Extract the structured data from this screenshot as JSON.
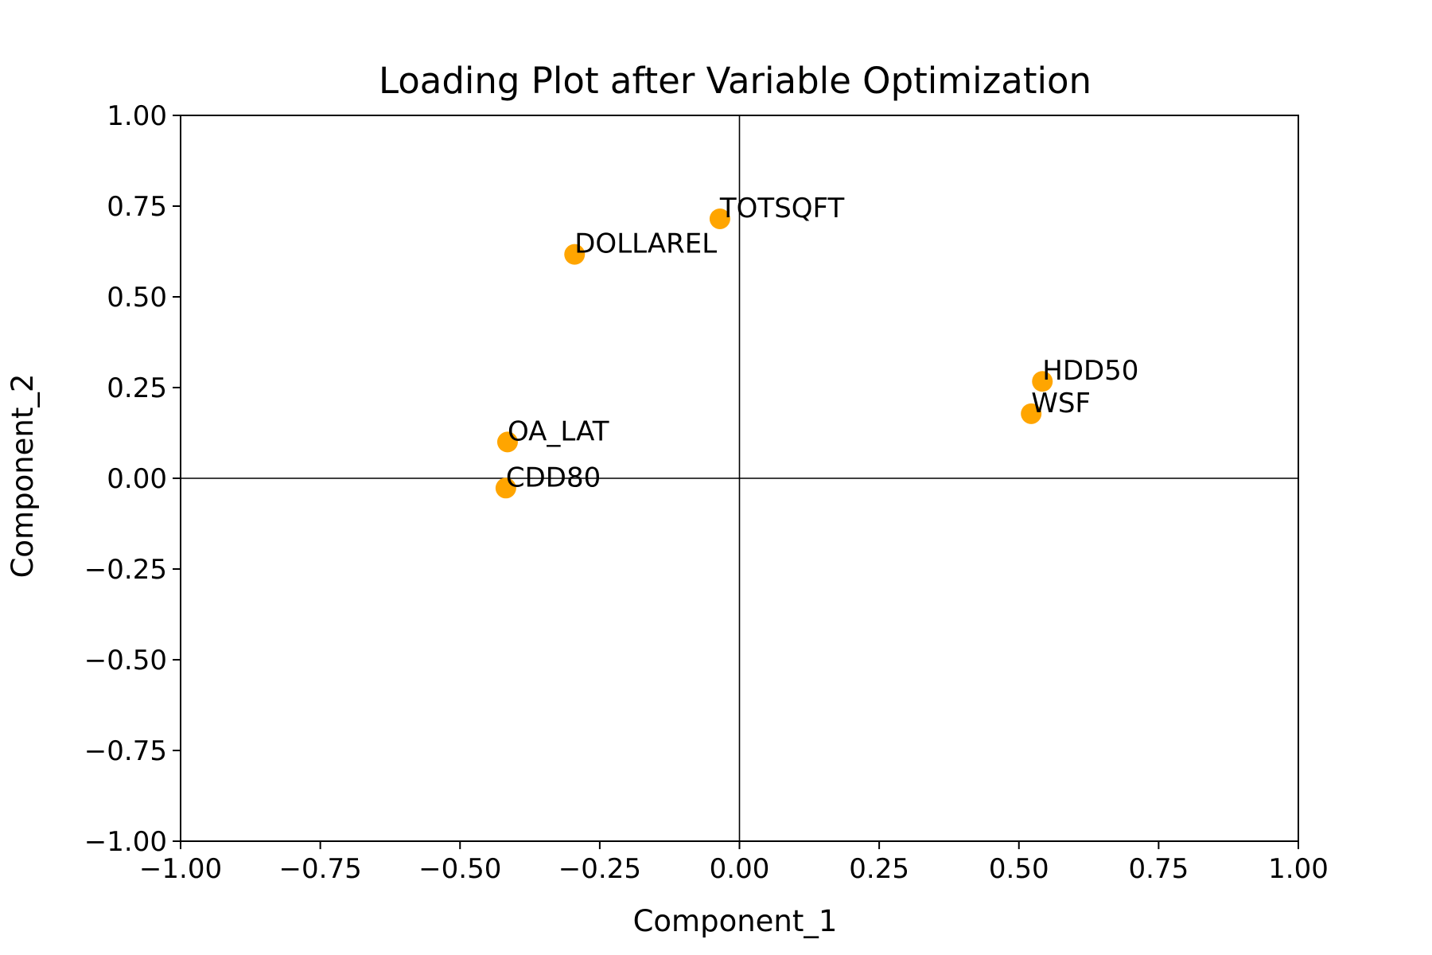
{
  "chart_data": {
    "type": "scatter",
    "title": "Loading Plot after Variable Optimization",
    "xlabel": "Component_1",
    "ylabel": "Component_2",
    "xlim": [
      -1.0,
      1.0
    ],
    "ylim": [
      -1.0,
      1.0
    ],
    "xticks": [
      -1.0,
      -0.75,
      -0.5,
      -0.25,
      0.0,
      0.25,
      0.5,
      0.75,
      1.0
    ],
    "yticks": [
      -1.0,
      -0.75,
      -0.5,
      -0.25,
      0.0,
      0.25,
      0.5,
      0.75,
      1.0
    ],
    "xtick_labels": [
      "−1.00",
      "−0.75",
      "−0.50",
      "−0.25",
      "0.00",
      "0.25",
      "0.50",
      "0.75",
      "1.00"
    ],
    "ytick_labels": [
      "−1.00",
      "−0.75",
      "−0.50",
      "−0.25",
      "0.00",
      "0.25",
      "0.50",
      "0.75",
      "1.00"
    ],
    "grid": false,
    "reference_lines": {
      "x": 0,
      "y": 0
    },
    "marker_color": "#FFA500",
    "points": [
      {
        "label": "TOTSQFT",
        "x": -0.035,
        "y": 0.715
      },
      {
        "label": "DOLLAREL",
        "x": -0.295,
        "y": 0.617
      },
      {
        "label": "HDD50",
        "x": 0.542,
        "y": 0.267
      },
      {
        "label": "WSF",
        "x": 0.522,
        "y": 0.178
      },
      {
        "label": "OA_LAT",
        "x": -0.415,
        "y": 0.1
      },
      {
        "label": "CDD80",
        "x": -0.418,
        "y": -0.027
      }
    ]
  }
}
